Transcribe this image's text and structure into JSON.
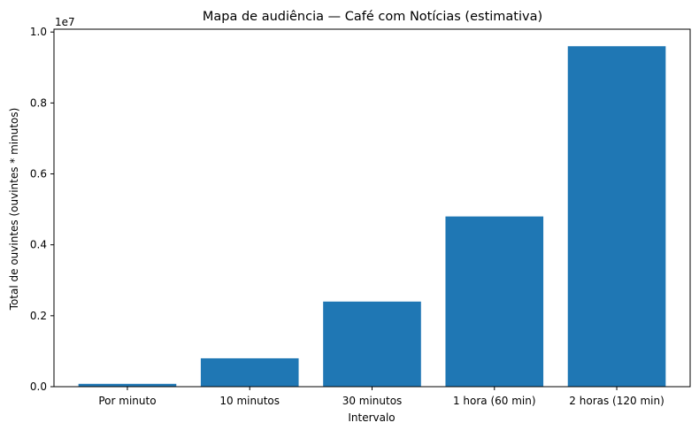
{
  "colors": {
    "bar": "#1f77b4",
    "axis": "#000000",
    "background": "#ffffff"
  },
  "chart_data": {
    "type": "bar",
    "title": "Mapa de audiência — Café com Notícias (estimativa)",
    "xlabel": "Intervalo",
    "ylabel": "Total de ouvintes (ouvintes * minutos)",
    "y_offset_label": "1e7",
    "y_scale": 10000000,
    "categories": [
      "Por minuto",
      "10 minutos",
      "30 minutos",
      "1 hora (60 min)",
      "2 horas (120 min)"
    ],
    "values": [
      80000,
      800000,
      2400000,
      4800000,
      9600000
    ],
    "y_ticks": [
      0.0,
      0.2,
      0.4,
      0.6,
      0.8,
      1.0
    ],
    "y_tick_labels": [
      "0.0",
      "0.2",
      "0.4",
      "0.6",
      "0.8",
      "1.0"
    ],
    "ylim": [
      0,
      10080000
    ],
    "grid": false,
    "legend": "none"
  }
}
